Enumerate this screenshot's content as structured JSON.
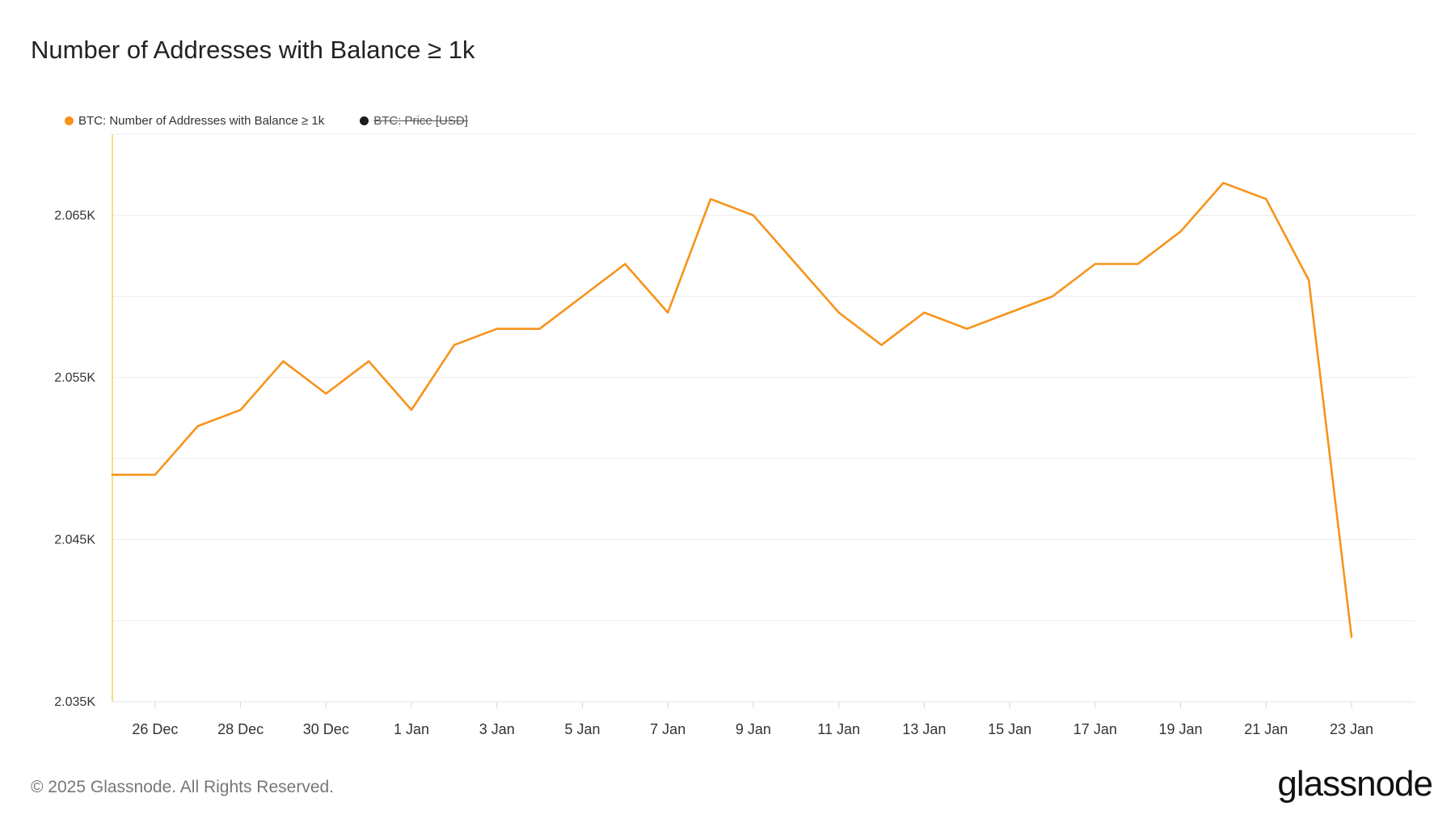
{
  "header": {
    "title": "Number of Addresses with Balance ≥ 1k"
  },
  "legend": [
    {
      "label": "BTC: Number of Addresses with Balance ≥ 1k",
      "color": "#f7931a",
      "active": true
    },
    {
      "label": "BTC: Price [USD]",
      "color": "#1a1a1a",
      "active": false
    }
  ],
  "footer": {
    "copyright": "© 2025 Glassnode. All Rights Reserved.",
    "brand": "glassnode"
  },
  "chart_data": {
    "type": "line",
    "title": "Number of Addresses with Balance ≥ 1k",
    "xlabel": "",
    "ylabel": "",
    "x": [
      "2024-12-25",
      "2024-12-26",
      "2024-12-27",
      "2024-12-28",
      "2024-12-29",
      "2024-12-30",
      "2024-12-31",
      "2025-01-01",
      "2025-01-02",
      "2025-01-03",
      "2025-01-04",
      "2025-01-05",
      "2025-01-06",
      "2025-01-07",
      "2025-01-08",
      "2025-01-09",
      "2025-01-10",
      "2025-01-11",
      "2025-01-12",
      "2025-01-13",
      "2025-01-14",
      "2025-01-15",
      "2025-01-16",
      "2025-01-17",
      "2025-01-18",
      "2025-01-19",
      "2025-01-20",
      "2025-01-21",
      "2025-01-22",
      "2025-01-23"
    ],
    "series": [
      {
        "name": "BTC: Number of Addresses with Balance ≥ 1k",
        "color": "#f7931a",
        "values": [
          2049,
          2049,
          2052,
          2053,
          2056,
          2054,
          2056,
          2053,
          2057,
          2058,
          2058,
          2060,
          2062,
          2059,
          2066,
          2065,
          2062,
          2059,
          2057,
          2059,
          2058,
          2059,
          2060,
          2062,
          2062,
          2064,
          2067,
          2066,
          2061,
          2039
        ]
      }
    ],
    "ylim": [
      2035,
      2070
    ],
    "yticks": [
      2035,
      2045,
      2055,
      2065
    ],
    "ytick_labels": [
      "2.035K",
      "2.045K",
      "2.055K",
      "2.065K"
    ],
    "xticks": [
      "2024-12-26",
      "2024-12-28",
      "2024-12-30",
      "2025-01-01",
      "2025-01-03",
      "2025-01-05",
      "2025-01-07",
      "2025-01-09",
      "2025-01-11",
      "2025-01-13",
      "2025-01-15",
      "2025-01-17",
      "2025-01-19",
      "2025-01-21",
      "2025-01-23"
    ],
    "xtick_labels": [
      "26 Dec",
      "28 Dec",
      "30 Dec",
      "1 Jan",
      "3 Jan",
      "5 Jan",
      "7 Jan",
      "9 Jan",
      "11 Jan",
      "13 Jan",
      "15 Jan",
      "17 Jan",
      "19 Jan",
      "21 Jan",
      "23 Jan"
    ],
    "grid": true,
    "legend_position": "top-left"
  }
}
